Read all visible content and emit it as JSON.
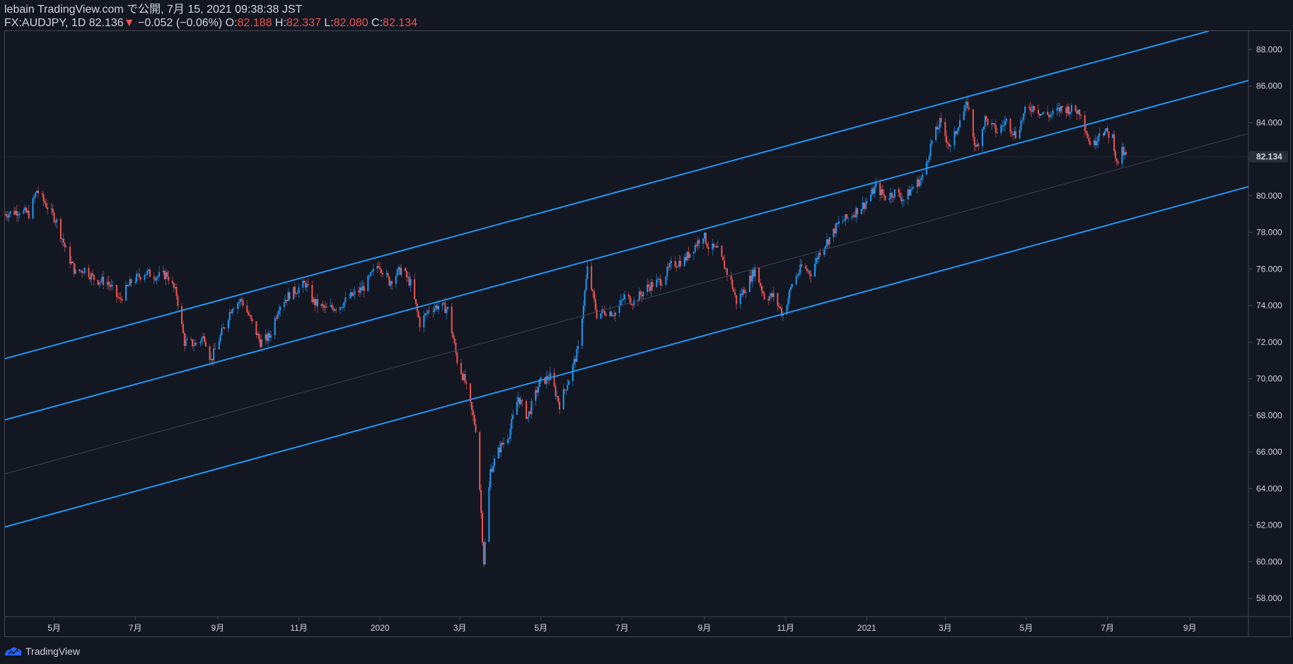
{
  "header": {
    "line1": "lebain TradingView.com で公開, 7月 15, 2021 09:38:38 JST",
    "symbol": "FX:AUDJPY, 1D 82.136",
    "arrow": "▼",
    "change": "−0.052 (−0.06%)",
    "o_label": "O:",
    "o_value": "82.188",
    "h_label": "H:",
    "h_value": "82.337",
    "l_label": "L:",
    "l_value": "82.080",
    "c_label": "C:",
    "c_value": "82.134"
  },
  "footer": {
    "brand": "TradingView"
  },
  "colors": {
    "background": "#131722",
    "up": "#2962ff",
    "up_alt": "#2196f3",
    "down": "#ef5350",
    "channel": "#2196f3",
    "border": "#434651",
    "text": "#d1d4dc"
  },
  "chart_data": {
    "type": "candlestick",
    "symbol": "FX:AUDJPY",
    "interval": "1D",
    "y_ticks": [
      "88.000",
      "86.000",
      "84.000",
      "82.000",
      "80.000",
      "78.000",
      "76.000",
      "74.000",
      "72.000",
      "70.000",
      "68.000",
      "66.000",
      "64.000",
      "62.000",
      "60.000",
      "58.000"
    ],
    "ylim": [
      57.0,
      89.0
    ],
    "last_price": "82.134",
    "x_ticks": [
      "5月",
      "7月",
      "9月",
      "11月",
      "2020",
      "3月",
      "5月",
      "7月",
      "9月",
      "11月",
      "2021",
      "3月",
      "5月",
      "7月",
      "9月"
    ],
    "x_tick_dates": [
      "2019-05-01",
      "2019-07-01",
      "2019-09-01",
      "2019-11-01",
      "2020-01-01",
      "2020-03-01",
      "2020-05-01",
      "2020-07-01",
      "2020-09-01",
      "2020-11-01",
      "2021-01-01",
      "2021-03-01",
      "2021-05-01",
      "2021-07-01",
      "2021-09-01"
    ],
    "x_range": [
      "2019-03-25",
      "2021-10-15"
    ],
    "price_path": [
      [
        "2019-03-25",
        79.0
      ],
      [
        "2019-04-05",
        79.2
      ],
      [
        "2019-04-12",
        79.0
      ],
      [
        "2019-04-18",
        80.3
      ],
      [
        "2019-04-25",
        79.5
      ],
      [
        "2019-05-03",
        78.6
      ],
      [
        "2019-05-10",
        77.0
      ],
      [
        "2019-05-17",
        75.8
      ],
      [
        "2019-05-24",
        76.0
      ],
      [
        "2019-06-01",
        75.4
      ],
      [
        "2019-06-10",
        75.3
      ],
      [
        "2019-06-19",
        74.3
      ],
      [
        "2019-06-28",
        75.3
      ],
      [
        "2019-07-08",
        75.8
      ],
      [
        "2019-07-18",
        75.6
      ],
      [
        "2019-07-25",
        75.7
      ],
      [
        "2019-08-01",
        74.6
      ],
      [
        "2019-08-07",
        72.0
      ],
      [
        "2019-08-15",
        71.9
      ],
      [
        "2019-08-22",
        72.3
      ],
      [
        "2019-08-27",
        71.0
      ],
      [
        "2019-09-05",
        72.7
      ],
      [
        "2019-09-12",
        74.0
      ],
      [
        "2019-09-19",
        74.3
      ],
      [
        "2019-09-27",
        73.0
      ],
      [
        "2019-10-03",
        72.0
      ],
      [
        "2019-10-10",
        72.3
      ],
      [
        "2019-10-17",
        74.0
      ],
      [
        "2019-10-25",
        74.6
      ],
      [
        "2019-11-06",
        75.2
      ],
      [
        "2019-11-12",
        74.2
      ],
      [
        "2019-11-21",
        73.8
      ],
      [
        "2019-12-02",
        74.0
      ],
      [
        "2019-12-10",
        74.5
      ],
      [
        "2019-12-20",
        75.0
      ],
      [
        "2019-12-31",
        76.3
      ],
      [
        "2020-01-08",
        75.3
      ],
      [
        "2020-01-17",
        76.0
      ],
      [
        "2020-01-24",
        75.2
      ],
      [
        "2020-01-31",
        73.0
      ],
      [
        "2020-02-07",
        73.8
      ],
      [
        "2020-02-14",
        74.0
      ],
      [
        "2020-02-21",
        73.8
      ],
      [
        "2020-02-28",
        71.0
      ],
      [
        "2020-03-05",
        69.8
      ],
      [
        "2020-03-09",
        68.5
      ],
      [
        "2020-03-13",
        67.3
      ],
      [
        "2020-03-16",
        64.0
      ],
      [
        "2020-03-19",
        60.0
      ],
      [
        "2020-03-24",
        65.0
      ],
      [
        "2020-03-31",
        66.2
      ],
      [
        "2020-04-07",
        67.0
      ],
      [
        "2020-04-14",
        69.0
      ],
      [
        "2020-04-21",
        67.9
      ],
      [
        "2020-04-30",
        69.8
      ],
      [
        "2020-05-08",
        70.1
      ],
      [
        "2020-05-15",
        68.6
      ],
      [
        "2020-05-22",
        70.0
      ],
      [
        "2020-05-29",
        71.6
      ],
      [
        "2020-06-05",
        76.0
      ],
      [
        "2020-06-12",
        73.5
      ],
      [
        "2020-06-19",
        73.7
      ],
      [
        "2020-06-26",
        73.6
      ],
      [
        "2020-07-03",
        74.5
      ],
      [
        "2020-07-10",
        74.2
      ],
      [
        "2020-07-20",
        75.0
      ],
      [
        "2020-07-31",
        75.4
      ],
      [
        "2020-08-07",
        76.2
      ],
      [
        "2020-08-17",
        76.5
      ],
      [
        "2020-08-31",
        77.9
      ],
      [
        "2020-09-04",
        77.2
      ],
      [
        "2020-09-11",
        77.0
      ],
      [
        "2020-09-21",
        75.3
      ],
      [
        "2020-09-25",
        74.2
      ],
      [
        "2020-10-02",
        75.0
      ],
      [
        "2020-10-09",
        76.0
      ],
      [
        "2020-10-16",
        74.5
      ],
      [
        "2020-10-23",
        74.5
      ],
      [
        "2020-10-30",
        73.5
      ],
      [
        "2020-11-06",
        75.2
      ],
      [
        "2020-11-13",
        76.1
      ],
      [
        "2020-11-20",
        75.8
      ],
      [
        "2020-11-27",
        77.0
      ],
      [
        "2020-12-04",
        77.7
      ],
      [
        "2020-12-11",
        78.5
      ],
      [
        "2020-12-18",
        78.8
      ],
      [
        "2020-12-31",
        79.6
      ],
      [
        "2021-01-08",
        80.5
      ],
      [
        "2021-01-15",
        79.9
      ],
      [
        "2021-01-22",
        80.2
      ],
      [
        "2021-01-29",
        79.8
      ],
      [
        "2021-02-05",
        80.5
      ],
      [
        "2021-02-12",
        81.0
      ],
      [
        "2021-02-19",
        83.0
      ],
      [
        "2021-02-25",
        84.0
      ],
      [
        "2021-03-05",
        82.6
      ],
      [
        "2021-03-12",
        84.2
      ],
      [
        "2021-03-18",
        85.0
      ],
      [
        "2021-03-24",
        82.5
      ],
      [
        "2021-03-31",
        84.2
      ],
      [
        "2021-04-09",
        83.5
      ],
      [
        "2021-04-16",
        84.1
      ],
      [
        "2021-04-23",
        83.3
      ],
      [
        "2021-04-30",
        84.6
      ],
      [
        "2021-05-07",
        84.9
      ],
      [
        "2021-05-12",
        84.5
      ],
      [
        "2021-05-19",
        84.4
      ],
      [
        "2021-05-28",
        84.8
      ],
      [
        "2021-06-04",
        84.7
      ],
      [
        "2021-06-11",
        84.6
      ],
      [
        "2021-06-17",
        83.0
      ],
      [
        "2021-06-21",
        82.8
      ],
      [
        "2021-06-25",
        83.6
      ],
      [
        "2021-07-01",
        83.4
      ],
      [
        "2021-07-05",
        83.2
      ],
      [
        "2021-07-08",
        81.7
      ],
      [
        "2021-07-12",
        82.4
      ],
      [
        "2021-07-15",
        82.13
      ]
    ],
    "channel_lines": [
      {
        "name": "upper",
        "points": [
          [
            "2019-03-25",
            71.1
          ],
          [
            "2021-09-15",
            89.0
          ]
        ]
      },
      {
        "name": "middle",
        "points": [
          [
            "2019-03-25",
            67.75
          ],
          [
            "2021-10-15",
            86.3
          ]
        ]
      },
      {
        "name": "lower",
        "points": [
          [
            "2019-03-25",
            61.9
          ],
          [
            "2021-10-15",
            80.5
          ]
        ]
      },
      {
        "name": "median",
        "points": [
          [
            "2019-03-25",
            64.8
          ],
          [
            "2021-10-15",
            83.4
          ]
        ]
      }
    ]
  }
}
